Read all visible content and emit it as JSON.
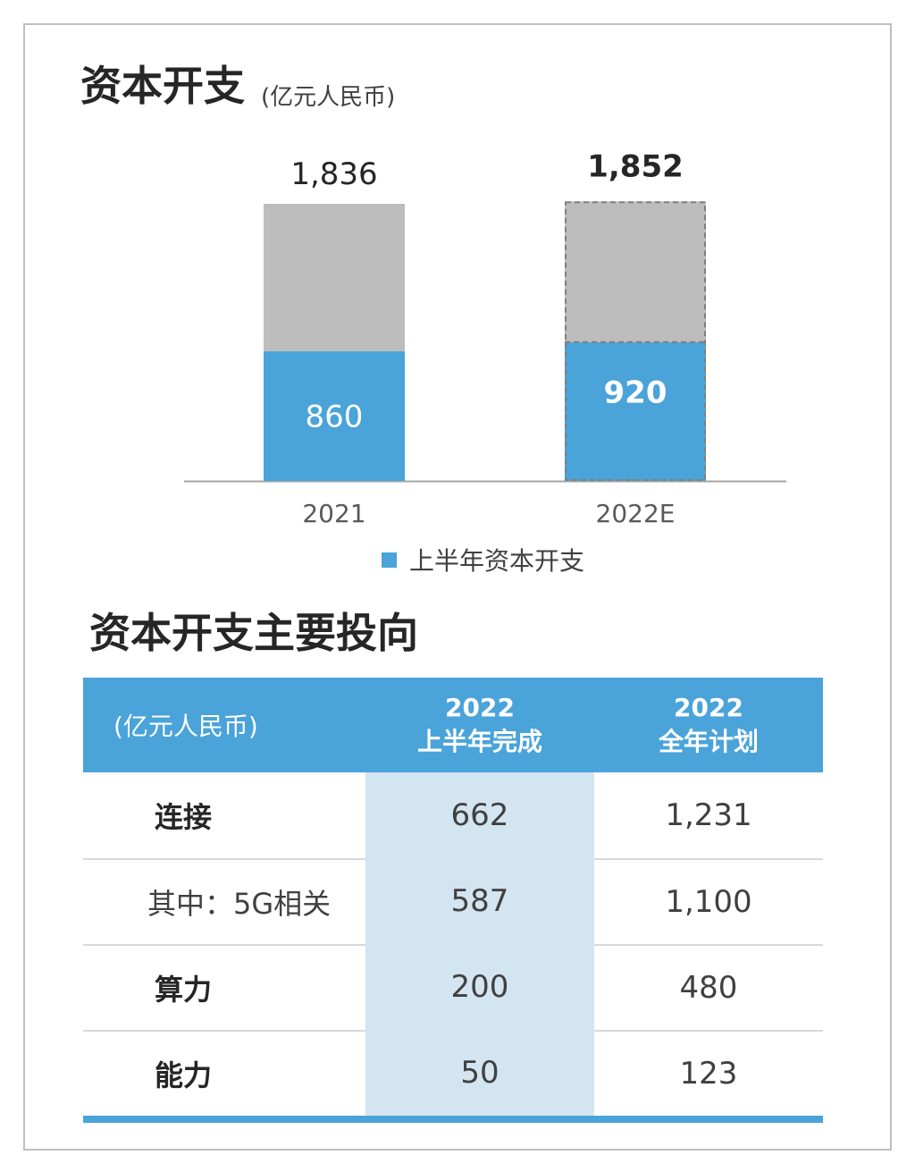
{
  "colors": {
    "accent_blue": "#4aa3d9",
    "gray_bar": "#bdbdbd",
    "highlight_col": "#d3e5f0",
    "axis": "#a6a6a6"
  },
  "header": {
    "title": "资本开支",
    "unit": "(亿元人民币)"
  },
  "chart_data": {
    "type": "bar",
    "stacked": true,
    "categories": [
      "2021",
      "2022E"
    ],
    "series": [
      {
        "name": "上半年资本开支",
        "values": [
          860,
          920
        ],
        "color": "#4aa3d9"
      },
      {
        "values": [
          976,
          932
        ],
        "color": "#bdbdbd"
      }
    ],
    "totals": [
      1836,
      1852
    ],
    "total_labels": [
      "1,836",
      "1,852"
    ],
    "segment_labels": [
      "860",
      "920"
    ],
    "estimated": [
      false,
      true
    ],
    "ylim": [
      0,
      1900
    ],
    "grid": false,
    "legend_position": "bottom"
  },
  "legend": {
    "label": "上半年资本开支"
  },
  "section2": {
    "title": "资本开支主要投向"
  },
  "table": {
    "unit_header": "(亿元人民币)",
    "col2_line1": "2022",
    "col2_line2": "上半年完成",
    "col3_line1": "2022",
    "col3_line2": "全年计划",
    "rows": [
      {
        "label": "连接",
        "h1": "662",
        "full": "1,231"
      },
      {
        "label": "其中：5G相关",
        "h1": "587",
        "full": "1,100"
      },
      {
        "label": "算力",
        "h1": "200",
        "full": "480"
      },
      {
        "label": "能力",
        "h1": "50",
        "full": "123"
      }
    ]
  }
}
